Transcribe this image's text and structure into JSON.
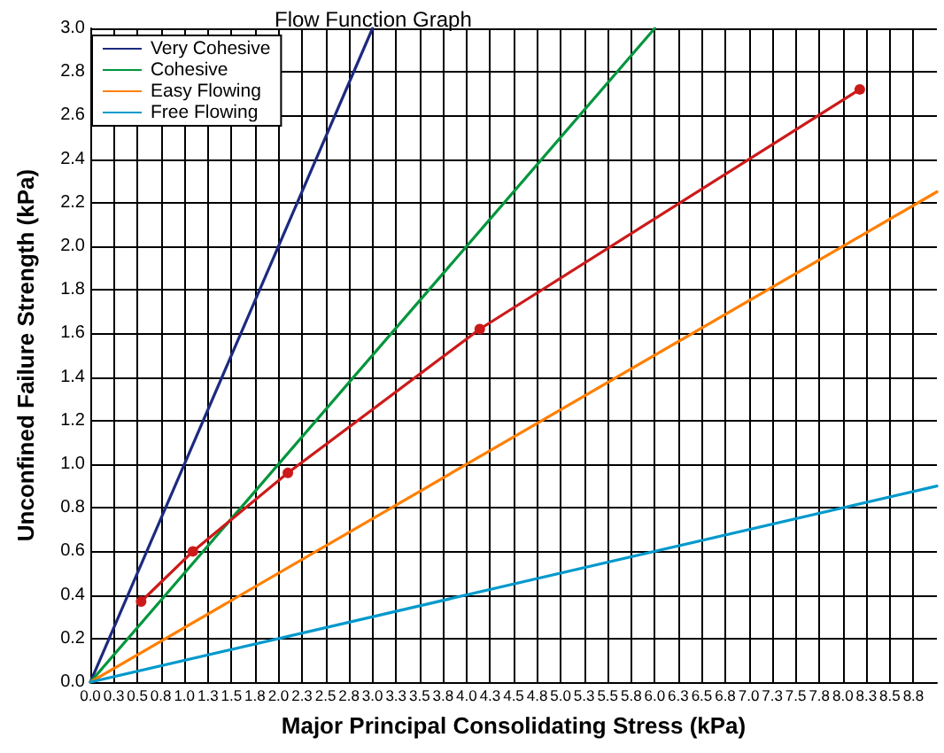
{
  "chart_data": {
    "type": "line",
    "title": "Flow Function Graph",
    "xlabel": "Major Principal Consolidating Stress (kPa)",
    "ylabel": "Unconfined Failure Strength (kPa)",
    "series": [
      {
        "name": "Very Cohesive",
        "color": "#1c2a80",
        "x": [
          0,
          3
        ],
        "values": [
          0,
          3
        ],
        "marker": "none"
      },
      {
        "name": "Cohesive",
        "color": "#00963c",
        "x": [
          0,
          6
        ],
        "values": [
          0,
          3
        ],
        "marker": "none"
      },
      {
        "name": "Easy Flowing",
        "color": "#ff7f00",
        "x": [
          0,
          9
        ],
        "values": [
          0,
          2.25
        ],
        "marker": "none"
      },
      {
        "name": "Free Flowing",
        "color": "#0099cc",
        "x": [
          0,
          9
        ],
        "values": [
          0,
          0.9
        ],
        "marker": "none"
      },
      {
        "color": "#cc1a1a",
        "x": [
          0.54,
          1.09,
          2.1,
          4.14,
          8.18
        ],
        "values": [
          0.37,
          0.6,
          0.96,
          1.62,
          2.72
        ],
        "marker": "circle"
      }
    ],
    "xlim": [
      0,
      9
    ],
    "xticks": [
      {
        "value": 0,
        "label": "0.0"
      },
      {
        "value": 0.25,
        "label": "0.3"
      },
      {
        "value": 0.5,
        "label": "0.5"
      },
      {
        "value": 0.75,
        "label": "0.8"
      },
      {
        "value": 1,
        "label": "1.0"
      },
      {
        "value": 1.25,
        "label": "1.3"
      },
      {
        "value": 1.5,
        "label": "1.5"
      },
      {
        "value": 1.75,
        "label": "1.8"
      },
      {
        "value": 2,
        "label": "2.0"
      },
      {
        "value": 2.25,
        "label": "2.3"
      },
      {
        "value": 2.5,
        "label": "2.5"
      },
      {
        "value": 2.75,
        "label": "2.8"
      },
      {
        "value": 3,
        "label": "3.0"
      },
      {
        "value": 3.25,
        "label": "3.3"
      },
      {
        "value": 3.5,
        "label": "3.5"
      },
      {
        "value": 3.75,
        "label": "3.8"
      },
      {
        "value": 4,
        "label": "4.0"
      },
      {
        "value": 4.25,
        "label": "4.3"
      },
      {
        "value": 4.5,
        "label": "4.5"
      },
      {
        "value": 4.75,
        "label": "4.8"
      },
      {
        "value": 5,
        "label": "5.0"
      },
      {
        "value": 5.25,
        "label": "5.3"
      },
      {
        "value": 5.5,
        "label": "5.5"
      },
      {
        "value": 5.75,
        "label": "5.8"
      },
      {
        "value": 6,
        "label": "6.0"
      },
      {
        "value": 6.25,
        "label": "6.3"
      },
      {
        "value": 6.5,
        "label": "6.5"
      },
      {
        "value": 6.75,
        "label": "6.8"
      },
      {
        "value": 7,
        "label": "7.0"
      },
      {
        "value": 7.25,
        "label": "7.3"
      },
      {
        "value": 7.5,
        "label": "7.5"
      },
      {
        "value": 7.75,
        "label": "7.8"
      },
      {
        "value": 8,
        "label": "8.0"
      },
      {
        "value": 8.25,
        "label": "8.3"
      },
      {
        "value": 8.5,
        "label": "8.5"
      },
      {
        "value": 8.75,
        "label": "8.8"
      }
    ],
    "ylim": [
      0,
      3
    ],
    "yticks": [
      {
        "value": 0,
        "label": "0.0"
      },
      {
        "value": 0.2,
        "label": "0.2"
      },
      {
        "value": 0.4,
        "label": "0.4"
      },
      {
        "value": 0.6,
        "label": "0.6"
      },
      {
        "value": 0.8,
        "label": "0.8"
      },
      {
        "value": 1,
        "label": "1.0"
      },
      {
        "value": 1.2,
        "label": "1.2"
      },
      {
        "value": 1.4,
        "label": "1.4"
      },
      {
        "value": 1.6,
        "label": "1.6"
      },
      {
        "value": 1.8,
        "label": "1.8"
      },
      {
        "value": 2,
        "label": "2.0"
      },
      {
        "value": 2.2,
        "label": "2.2"
      },
      {
        "value": 2.4,
        "label": "2.4"
      },
      {
        "value": 2.6,
        "label": "2.6"
      },
      {
        "value": 2.8,
        "label": "2.8"
      },
      {
        "value": 3,
        "label": "3.0"
      }
    ],
    "grid": true,
    "legend": "top left",
    "line_style": "solid"
  }
}
